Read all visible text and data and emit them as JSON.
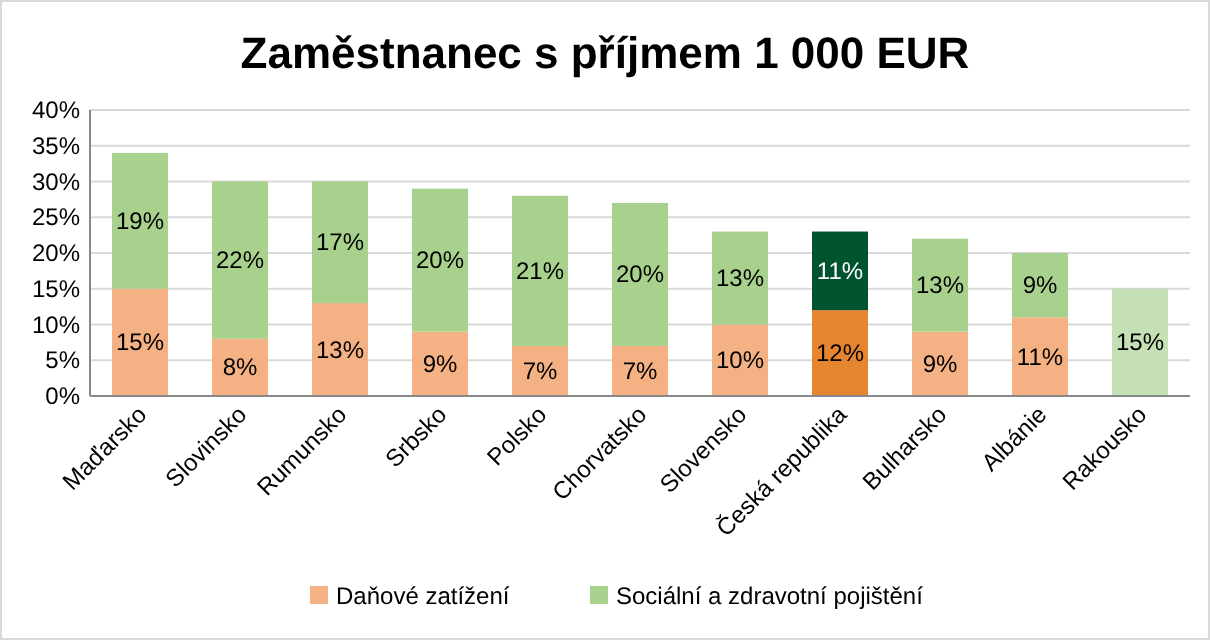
{
  "chart_data": {
    "type": "bar",
    "title": "Zaměstnanec s příjmem 1 000 EUR",
    "stacked": true,
    "grid": "y",
    "legend": "bottom",
    "categories": [
      "Maďarsko",
      "Slovinsko",
      "Rumunsko",
      "Srbsko",
      "Polsko",
      "Chorvatsko",
      "Slovensko",
      "Česká republika",
      "Bulharsko",
      "Albánie",
      "Rakousko"
    ],
    "ylim": [
      0,
      40
    ],
    "yticks": [
      {
        "value": 0,
        "label": "0%"
      },
      {
        "value": 5,
        "label": "5%"
      },
      {
        "value": 10,
        "label": "10%"
      },
      {
        "value": 15,
        "label": "15%"
      },
      {
        "value": 20,
        "label": "20%"
      },
      {
        "value": 25,
        "label": "25%"
      },
      {
        "value": 30,
        "label": "30%"
      },
      {
        "value": 35,
        "label": "35%"
      },
      {
        "value": 40,
        "label": "40%"
      }
    ],
    "series": [
      {
        "name": "Daňové zatížení",
        "color": "#f4b183",
        "colors": [
          "#f4b183",
          "#f4b183",
          "#f4b183",
          "#f4b183",
          "#f4b183",
          "#f4b183",
          "#f4b183",
          "#e6852f",
          "#f4b183",
          "#f4b183",
          null
        ],
        "values": [
          15,
          8,
          13,
          9,
          7,
          7,
          10,
          12,
          9,
          11,
          null
        ],
        "value_labels": [
          "15%",
          "8%",
          "13%",
          "9%",
          "7%",
          "7%",
          "10%",
          "12%",
          "9%",
          "11%",
          null
        ]
      },
      {
        "name": "Sociální a zdravotní pojištění",
        "color": "#a9d18e",
        "colors": [
          "#a9d18e",
          "#a9d18e",
          "#a9d18e",
          "#a9d18e",
          "#a9d18e",
          "#a9d18e",
          "#a9d18e",
          "#00532f",
          "#a9d18e",
          "#a9d18e",
          "#c5e0b4"
        ],
        "values": [
          19,
          22,
          17,
          20,
          21,
          20,
          13,
          11,
          13,
          9,
          15
        ],
        "value_labels": [
          "19%",
          "22%",
          "17%",
          "20%",
          "21%",
          "20%",
          "13%",
          "11%",
          "13%",
          "9%",
          "15%"
        ]
      }
    ]
  }
}
